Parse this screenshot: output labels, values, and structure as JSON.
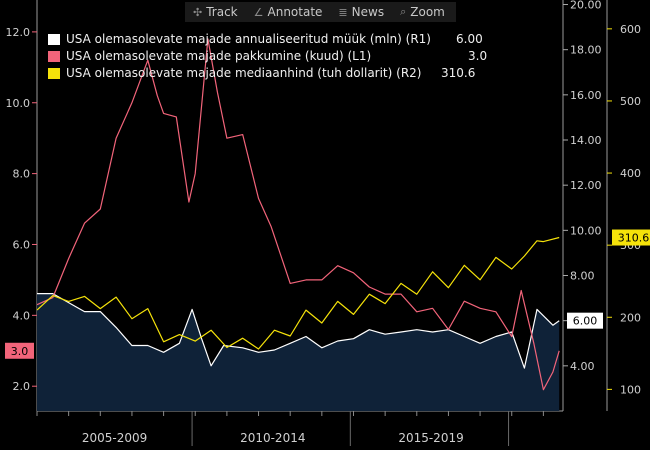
{
  "toolbar": {
    "items": [
      {
        "label": "Track",
        "icon": "crosshair-icon",
        "glyph": "✣"
      },
      {
        "label": "Annotate",
        "icon": "pencil-icon",
        "glyph": "∠"
      },
      {
        "label": "News",
        "icon": "news-icon",
        "glyph": "≣"
      },
      {
        "label": "Zoom",
        "icon": "search-icon",
        "glyph": "⌕"
      }
    ]
  },
  "legend": [
    {
      "label": "USA olemasolevate majade annualiseeritud müük (mln) (R1)",
      "value": "6.00",
      "color": "#ffffff"
    },
    {
      "label": "USA olemasolevate majade pakkumine (kuud) (L1)",
      "value": "3.0",
      "color": "#f2647a"
    },
    {
      "label": "USA olemasolevate majade mediaanhind (tuh dollarit) (R2)",
      "value": "310.6",
      "color": "#f5e20a"
    }
  ],
  "chart_data": {
    "type": "line",
    "x_range": [
      "2005-01",
      "2021-07"
    ],
    "x_labels": [
      "2005-2009",
      "2010-2014",
      "2015-2019"
    ],
    "left_axis": {
      "ticks": [
        "2.0",
        "4.0",
        "6.0",
        "8.0",
        "10.0",
        "12.0"
      ],
      "ylim": [
        1.3,
        12.9
      ],
      "color": "#f2647a"
    },
    "right1_axis": {
      "ticks": [
        "4.00",
        "6.00",
        "8.00",
        "10.00",
        "12.00",
        "14.00",
        "16.00",
        "18.00",
        "20.00"
      ],
      "ylim": [
        2.0,
        20.2
      ]
    },
    "right2_axis": {
      "ticks": [
        "100",
        "200",
        "300",
        "400",
        "500",
        "600"
      ],
      "ylim": [
        70,
        640
      ],
      "color": "#f5e20a"
    },
    "series": [
      {
        "name": "USA olemasolevate majade annualiseeritud müük (mln) (R1)",
        "axis": "right1",
        "color": "#ffffff",
        "area": true,
        "last_label": "6.00",
        "points": [
          [
            "2005.0",
            7.2
          ],
          [
            "2005.5",
            7.2
          ],
          [
            "2006.0",
            6.8
          ],
          [
            "2006.5",
            6.4
          ],
          [
            "2007.0",
            6.4
          ],
          [
            "2007.5",
            5.7
          ],
          [
            "2008.0",
            4.9
          ],
          [
            "2008.5",
            4.9
          ],
          [
            "2009.0",
            4.6
          ],
          [
            "2009.5",
            5.0
          ],
          [
            "2009.9",
            6.5
          ],
          [
            "2010.2",
            5.2
          ],
          [
            "2010.5",
            4.0
          ],
          [
            "2010.9",
            4.9
          ],
          [
            "2011.5",
            4.8
          ],
          [
            "2012.0",
            4.6
          ],
          [
            "2012.5",
            4.7
          ],
          [
            "2013.0",
            5.0
          ],
          [
            "2013.5",
            5.3
          ],
          [
            "2014.0",
            4.8
          ],
          [
            "2014.5",
            5.1
          ],
          [
            "2015.0",
            5.2
          ],
          [
            "2015.5",
            5.6
          ],
          [
            "2016.0",
            5.4
          ],
          [
            "2016.5",
            5.5
          ],
          [
            "2017.0",
            5.6
          ],
          [
            "2017.5",
            5.5
          ],
          [
            "2018.0",
            5.6
          ],
          [
            "2018.5",
            5.3
          ],
          [
            "2019.0",
            5.0
          ],
          [
            "2019.5",
            5.3
          ],
          [
            "2020.0",
            5.5
          ],
          [
            "2020.4",
            3.9
          ],
          [
            "2020.8",
            6.5
          ],
          [
            "2021.3",
            5.8
          ],
          [
            "2021.5",
            6.0
          ]
        ]
      },
      {
        "name": "USA olemasolevate majade pakkumine (kuud) (L1)",
        "axis": "left",
        "color": "#f2647a",
        "last_label": "3.0",
        "points": [
          [
            "2005.0",
            4.3
          ],
          [
            "2005.5",
            4.5
          ],
          [
            "2006.0",
            5.6
          ],
          [
            "2006.5",
            6.6
          ],
          [
            "2007.0",
            7.0
          ],
          [
            "2007.5",
            9.0
          ],
          [
            "2008.0",
            10.0
          ],
          [
            "2008.5",
            11.2
          ],
          [
            "2008.8",
            10.2
          ],
          [
            "2009.0",
            9.7
          ],
          [
            "2009.4",
            9.6
          ],
          [
            "2009.8",
            7.2
          ],
          [
            "2010.0",
            8.0
          ],
          [
            "2010.4",
            11.8
          ],
          [
            "2010.7",
            10.3
          ],
          [
            "2011.0",
            9.0
          ],
          [
            "2011.5",
            9.1
          ],
          [
            "2012.0",
            7.3
          ],
          [
            "2012.4",
            6.5
          ],
          [
            "2013.0",
            4.9
          ],
          [
            "2013.5",
            5.0
          ],
          [
            "2014.0",
            5.0
          ],
          [
            "2014.5",
            5.4
          ],
          [
            "2015.0",
            5.2
          ],
          [
            "2015.5",
            4.8
          ],
          [
            "2016.0",
            4.6
          ],
          [
            "2016.5",
            4.6
          ],
          [
            "2017.0",
            4.1
          ],
          [
            "2017.5",
            4.2
          ],
          [
            "2018.0",
            3.6
          ],
          [
            "2018.5",
            4.4
          ],
          [
            "2019.0",
            4.2
          ],
          [
            "2019.5",
            4.1
          ],
          [
            "2020.0",
            3.4
          ],
          [
            "2020.3",
            4.7
          ],
          [
            "2020.7",
            3.2
          ],
          [
            "2021.0",
            1.9
          ],
          [
            "2021.3",
            2.4
          ],
          [
            "2021.5",
            3.0
          ]
        ]
      },
      {
        "name": "USA olemasolevate majade mediaanhind (tuh dollarit) (R2)",
        "axis": "right2",
        "color": "#f5e20a",
        "last_label": "310.6",
        "points": [
          [
            "2005.0",
            210
          ],
          [
            "2005.5",
            230
          ],
          [
            "2006.0",
            222
          ],
          [
            "2006.5",
            229
          ],
          [
            "2007.0",
            212
          ],
          [
            "2007.5",
            228
          ],
          [
            "2008.0",
            198
          ],
          [
            "2008.5",
            212
          ],
          [
            "2009.0",
            166
          ],
          [
            "2009.5",
            176
          ],
          [
            "2010.0",
            167
          ],
          [
            "2010.5",
            182
          ],
          [
            "2011.0",
            158
          ],
          [
            "2011.5",
            171
          ],
          [
            "2012.0",
            156
          ],
          [
            "2012.5",
            182
          ],
          [
            "2013.0",
            174
          ],
          [
            "2013.5",
            210
          ],
          [
            "2014.0",
            192
          ],
          [
            "2014.5",
            222
          ],
          [
            "2015.0",
            204
          ],
          [
            "2015.5",
            232
          ],
          [
            "2016.0",
            219
          ],
          [
            "2016.5",
            247
          ],
          [
            "2017.0",
            232
          ],
          [
            "2017.5",
            263
          ],
          [
            "2018.0",
            241
          ],
          [
            "2018.5",
            272
          ],
          [
            "2019.0",
            252
          ],
          [
            "2019.5",
            283
          ],
          [
            "2020.0",
            267
          ],
          [
            "2020.4",
            285
          ],
          [
            "2020.8",
            306
          ],
          [
            "2021.0",
            305
          ],
          [
            "2021.5",
            310.6
          ]
        ]
      }
    ]
  }
}
